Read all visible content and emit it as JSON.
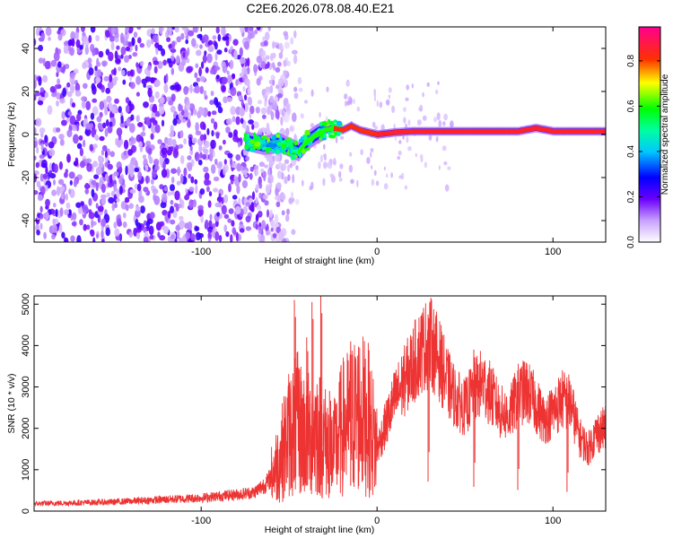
{
  "figure": {
    "title": "C2E6.2026.078.08.40.E21"
  },
  "chart_data": [
    {
      "type": "heatmap",
      "xlabel": "Height of straight line (km)",
      "ylabel": "Frequency (Hz)",
      "xlim": [
        -195,
        130
      ],
      "ylim": [
        -50,
        50
      ],
      "xticks": [
        -100,
        0,
        100
      ],
      "yticks": [
        -40,
        -20,
        0,
        20,
        40
      ],
      "xtick_labels": [
        "-100",
        "0",
        "100"
      ],
      "ytick_labels": [
        "-40",
        "-20",
        "0",
        "20",
        "40"
      ],
      "colorbar": {
        "label": "Normalized spectral amplitude",
        "range": [
          0,
          0.95
        ],
        "ticks": [
          0.0,
          0.2,
          0.4,
          0.6,
          0.8
        ],
        "tick_labels": [
          "0.0",
          "0.2",
          "0.4",
          "0.6",
          "0.8"
        ],
        "colormap": "rainbow (white-violet-blue-cyan-green-yellow-red-magenta)"
      },
      "features": {
        "noise_region_x": [
          -195,
          -75
        ],
        "transition_x": [
          -75,
          -40
        ],
        "ridge": {
          "x": [
            -75,
            -65,
            -55,
            -45,
            -40,
            -35,
            -30,
            -25,
            -20,
            -15,
            -10,
            -5,
            0,
            10,
            20,
            40,
            60,
            80,
            90,
            100,
            130
          ],
          "y": [
            -3,
            -5,
            -4,
            -8,
            -3,
            0,
            2,
            3,
            2,
            4,
            2,
            1,
            0,
            1,
            1.5,
            1.5,
            1.5,
            1.5,
            3,
            1.5,
            1.5
          ],
          "peak_amplitude": 0.85
        }
      }
    },
    {
      "type": "line",
      "xlabel": "Height of straight line (km)",
      "ylabel": "SNR (10 * v/v)",
      "xlim": [
        -195,
        130
      ],
      "ylim": [
        0,
        5200
      ],
      "xticks": [
        -100,
        0,
        100
      ],
      "yticks": [
        0,
        1000,
        2000,
        3000,
        4000,
        5000
      ],
      "xtick_labels": [
        "-100",
        "0",
        "100"
      ],
      "ytick_labels": [
        "0",
        "1000",
        "2000",
        "3000",
        "4000",
        "5000"
      ],
      "line_color": "#ee3333",
      "envelope": {
        "x": [
          -195,
          -150,
          -100,
          -80,
          -70,
          -62,
          -55,
          -50,
          -45,
          -40,
          -35,
          -30,
          -25,
          -20,
          -15,
          -10,
          -5,
          0,
          5,
          10,
          15,
          20,
          25,
          30,
          35,
          40,
          45,
          50,
          55,
          60,
          65,
          70,
          75,
          80,
          85,
          90,
          95,
          100,
          105,
          110,
          115,
          120,
          125,
          130
        ],
        "y": [
          180,
          220,
          320,
          400,
          450,
          700,
          1300,
          1900,
          2100,
          1800,
          2000,
          1700,
          1400,
          2000,
          2200,
          2400,
          2200,
          1500,
          2100,
          2700,
          3100,
          3500,
          3900,
          4100,
          3700,
          3100,
          2700,
          2500,
          2900,
          3100,
          2800,
          2400,
          2300,
          2800,
          2900,
          2600,
          2200,
          2400,
          2700,
          2600,
          1800,
          1500,
          1900,
          2000
        ]
      },
      "spikes": [
        {
          "x": -47,
          "y": 5100
        },
        {
          "x": -40,
          "y": 4200
        },
        {
          "x": -37,
          "y": 5050
        },
        {
          "x": -32,
          "y": 5200
        },
        {
          "x": -27,
          "y": 2900
        },
        {
          "x": -15,
          "y": 4100
        },
        {
          "x": 29,
          "y": 4750
        },
        {
          "x": 55,
          "y": 3900
        },
        {
          "x": 80,
          "y": 3400
        },
        {
          "x": 108,
          "y": 3100
        }
      ]
    }
  ]
}
